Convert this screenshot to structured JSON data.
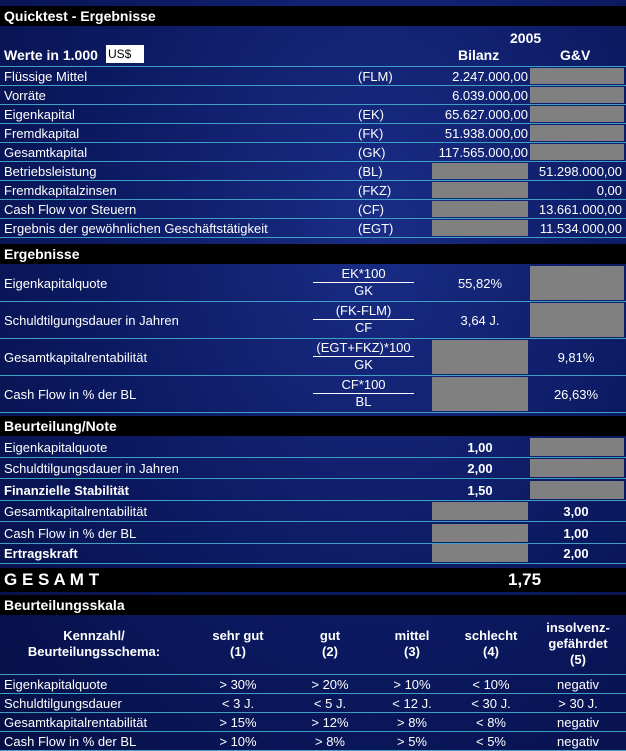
{
  "section1": {
    "title": "Quicktest - Ergebnisse",
    "werte_label": "Werte in 1.000",
    "currency": "US$",
    "year": "2005",
    "col_bilanz": "Bilanz",
    "col_guv": "G&V",
    "rows": [
      {
        "label": "Flüssige Mittel",
        "abbr": "(FLM)",
        "bilanz": "2.247.000,00",
        "guv": ""
      },
      {
        "label": "Vorräte",
        "abbr": "",
        "bilanz": "6.039.000,00",
        "guv": ""
      },
      {
        "label": "Eigenkapital",
        "abbr": "(EK)",
        "bilanz": "65.627.000,00",
        "guv": ""
      },
      {
        "label": "Fremdkapital",
        "abbr": "(FK)",
        "bilanz": "51.938.000,00",
        "guv": ""
      },
      {
        "label": "Gesamtkapital",
        "abbr": "(GK)",
        "bilanz": "117.565.000,00",
        "guv": ""
      },
      {
        "label": "Betriebsleistung",
        "abbr": "(BL)",
        "bilanz": "",
        "guv": "51.298.000,00"
      },
      {
        "label": "Fremdkapitalzinsen",
        "abbr": "(FKZ)",
        "bilanz": "",
        "guv": "0,00"
      },
      {
        "label": "Cash Flow vor Steuern",
        "abbr": "(CF)",
        "bilanz": "",
        "guv": "13.661.000,00"
      },
      {
        "label": "Ergebnis der gewöhnlichen Geschäftstätigkeit",
        "abbr": "(EGT)",
        "bilanz": "",
        "guv": "11.534.000,00"
      }
    ]
  },
  "section2": {
    "title": "Ergebnisse",
    "rows": [
      {
        "label": "Eigenkapitalquote",
        "num": "EK*100",
        "den": "GK",
        "bilanz": "55,82%",
        "guv": ""
      },
      {
        "label": "Schuldtilgungsdauer in Jahren",
        "num": "(FK-FLM)",
        "den": "CF",
        "bilanz": "3,64 J.",
        "guv": ""
      },
      {
        "label": "Gesamtkapitalrentabilität",
        "num": "(EGT+FKZ)*100",
        "den": "GK",
        "bilanz": "",
        "guv": "9,81%"
      },
      {
        "label": "Cash Flow in % der BL",
        "num": "CF*100",
        "den": "BL",
        "bilanz": "",
        "guv": "26,63%"
      }
    ]
  },
  "section3": {
    "title": "Beurteilung/Note",
    "rows": [
      {
        "label": "Eigenkapitalquote",
        "bilanz": "1,00",
        "guv": "",
        "bold": false
      },
      {
        "label": "Schuldtilgungsdauer in Jahren",
        "bilanz": "2,00",
        "guv": "",
        "bold": false
      },
      {
        "label": "Finanzielle Stabilität",
        "bilanz": "1,50",
        "guv": "",
        "bold": true
      },
      {
        "label": "Gesamtkapitalrentabilität",
        "bilanz": "",
        "guv": "3,00",
        "bold": false
      },
      {
        "label": "Cash Flow in % der BL",
        "bilanz": "",
        "guv": "1,00",
        "bold": false
      },
      {
        "label": "Ertragskraft",
        "bilanz": "",
        "guv": "2,00",
        "bold": true
      }
    ],
    "gesamt_label": "G E S A M T",
    "gesamt_value": "1,75"
  },
  "section4": {
    "title": "Beurteilungsskala",
    "headers": [
      [
        "Kennzahl/",
        "Beurteilungsschema:"
      ],
      [
        "sehr gut",
        "(1)"
      ],
      [
        "gut",
        "(2)"
      ],
      [
        "mittel",
        "(3)"
      ],
      [
        "schlecht",
        "(4)"
      ],
      [
        "insolvenz-",
        "gefährdet",
        "(5)"
      ]
    ],
    "rows": [
      {
        "label": "Eigenkapitalquote",
        "v": [
          "> 30%",
          "> 20%",
          "> 10%",
          "< 10%",
          "negativ"
        ]
      },
      {
        "label": "Schuldtilgungsdauer",
        "v": [
          "< 3 J.",
          "< 5 J.",
          "< 12 J.",
          "< 30 J.",
          "> 30 J."
        ]
      },
      {
        "label": "Gesamtkapitalrentabilität",
        "v": [
          "> 15%",
          "> 12%",
          "> 8%",
          "< 8%",
          "negativ"
        ]
      },
      {
        "label": "Cash Flow in % der BL",
        "v": [
          "> 10%",
          "> 8%",
          "> 5%",
          "< 5%",
          "negativ"
        ]
      }
    ]
  },
  "colors": {
    "background": "#0b1960",
    "header": "#000000",
    "separator": "#3fa0c6",
    "empty_cell": "#808080"
  }
}
